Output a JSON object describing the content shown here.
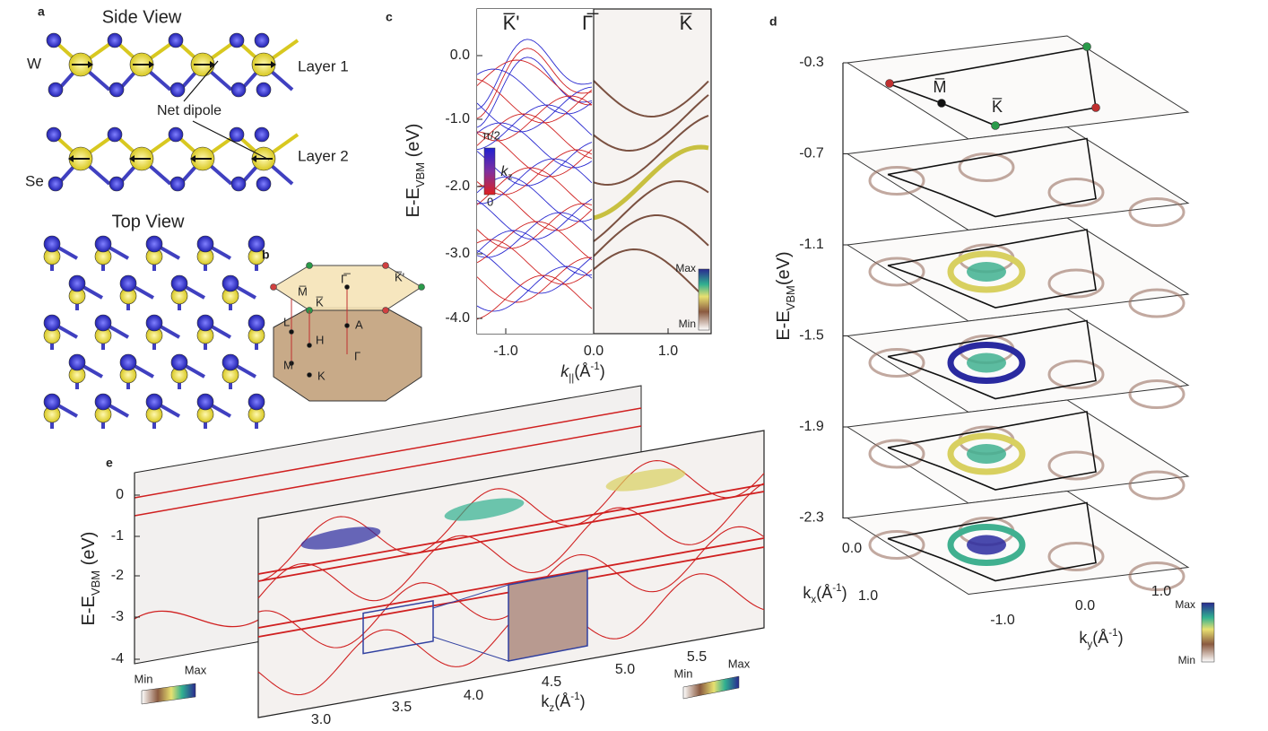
{
  "panel_a": {
    "label": "a",
    "side_view": "Side View",
    "w": "W",
    "se": "Se",
    "layer_1": "Layer 1",
    "layer_2": "Layer 2",
    "net_dipole": "Net dipole",
    "top_view": "Top View"
  },
  "panel_b": {
    "label": "b",
    "points": [
      "Γ̅",
      "K̅'",
      "M̅",
      "K̅",
      "L",
      "H",
      "A",
      "M",
      "Γ",
      "K"
    ]
  },
  "panel_c": {
    "label": "c",
    "top_labels": [
      "K̅'",
      "Γ̅",
      "K̅"
    ],
    "y_axis": {
      "main": "E-E",
      "sub": "VBM",
      "unit": " (eV)"
    },
    "yticks": [
      "0.0",
      "-1.0",
      "-2.0",
      "-3.0",
      "-4.0"
    ],
    "xticks": [
      "-1.0",
      "0.0",
      "1.0"
    ],
    "x_axis": {
      "main": "k",
      "sub": "||",
      "unit": "(Å",
      "sup": "-1",
      "close": ")"
    },
    "kz_bar": {
      "top": "π/2",
      "main": "k",
      "sub": "z",
      "bottom": "0"
    },
    "intensity_bar": {
      "max": "Max",
      "min": "Min"
    }
  },
  "panel_d": {
    "label": "d",
    "energies": [
      "-0.3",
      "-0.7",
      "-1.1",
      "-1.5",
      "-1.9",
      "-2.3"
    ],
    "points": [
      "M̅",
      "K̅"
    ],
    "y_axis": {
      "main": "E-E",
      "sub": "VBM",
      "unit": "(eV)"
    },
    "kx_ticks": [
      "0.0",
      "1.0"
    ],
    "ky_ticks": [
      "-1.0",
      "0.0",
      "1.0"
    ],
    "kx_axis": {
      "main": "k",
      "sub": "x",
      "unit": "(Å",
      "sup": "-1",
      "close": ")"
    },
    "ky_axis": {
      "main": "k",
      "sub": "y",
      "unit": "(Å",
      "sup": "-1",
      "close": ")"
    },
    "intensity_bar": {
      "max": "Max",
      "min": "Min"
    }
  },
  "panel_e": {
    "label": "e",
    "yticks": [
      "0",
      "-1",
      "-2",
      "-3",
      "-4"
    ],
    "y_axis": {
      "main": "E-E",
      "sub": "VBM",
      "unit": " (eV)"
    },
    "kz_ticks": [
      "3.0",
      "3.5",
      "4.0",
      "4.5",
      "5.0",
      "5.5"
    ],
    "kz_axis": {
      "main": "k",
      "sub": "z",
      "unit": "(Å",
      "sup": "-1",
      "close": ")"
    },
    "bar_left": {
      "min": "Min",
      "max": "Max"
    },
    "bar_right": {
      "min": "Min",
      "max": "Max"
    }
  }
}
